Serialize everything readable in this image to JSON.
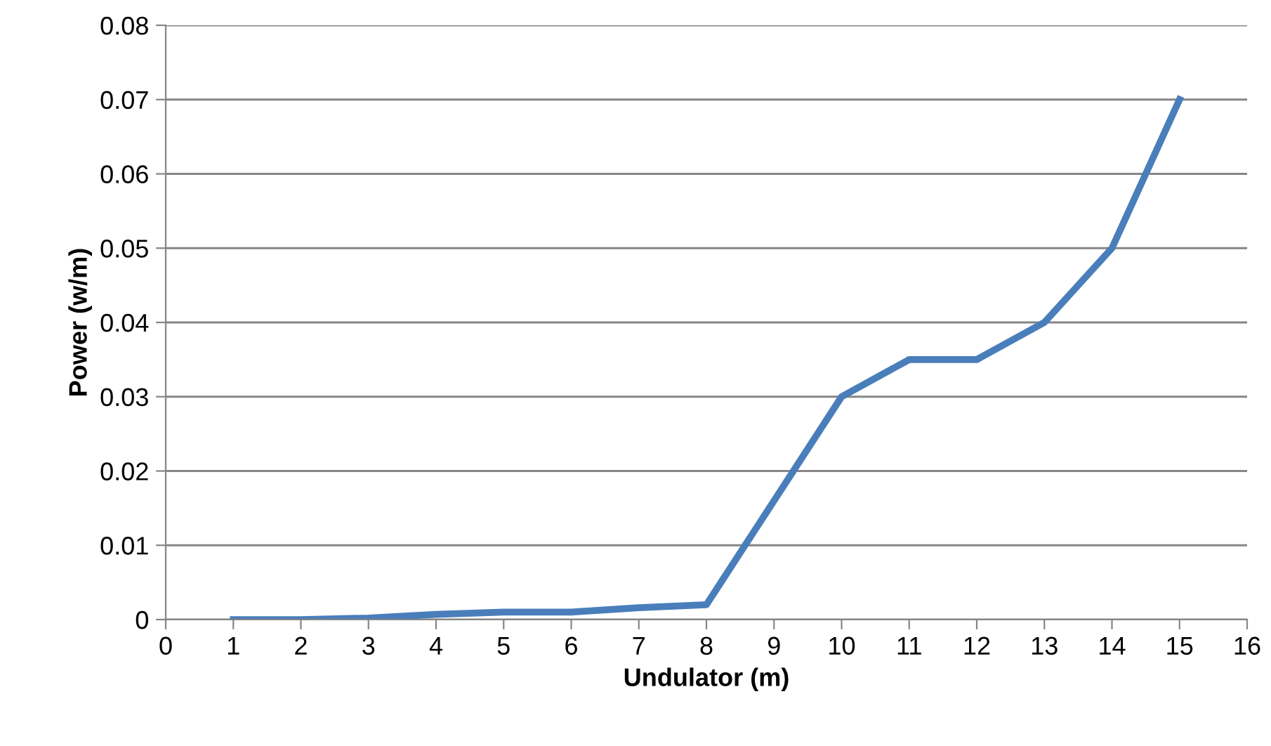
{
  "chart_data": {
    "type": "line",
    "xlabel": "Undulator (m)",
    "ylabel": "Power (w/m)",
    "x": [
      1,
      2,
      3,
      4,
      5,
      6,
      7,
      8,
      9,
      10,
      11,
      12,
      13,
      14,
      15
    ],
    "series": [
      {
        "color": "#4a7ebb",
        "values": [
          0,
          0,
          0.0002,
          0.0007,
          0.001,
          0.001,
          0.0016,
          0.002,
          0.016,
          0.03,
          0.035,
          0.035,
          0.04,
          0.05,
          0.07
        ]
      }
    ],
    "xlim": [
      0,
      16
    ],
    "xticks": [
      0,
      1,
      2,
      3,
      4,
      5,
      6,
      7,
      8,
      9,
      10,
      11,
      12,
      13,
      14,
      15,
      16
    ],
    "ylim": [
      0,
      0.08
    ],
    "yticks": [
      {
        "value": 0,
        "label": "0"
      },
      {
        "value": 0.01,
        "label": "0.01"
      },
      {
        "value": 0.02,
        "label": "0.02"
      },
      {
        "value": 0.03,
        "label": "0.03"
      },
      {
        "value": 0.04,
        "label": "0.04"
      },
      {
        "value": 0.05,
        "label": "0.05"
      },
      {
        "value": 0.06,
        "label": "0.06"
      },
      {
        "value": 0.07,
        "label": "0.07"
      },
      {
        "value": 0.08,
        "label": "0.08"
      }
    ],
    "grid": "y",
    "marker": "none",
    "line_style": "solid",
    "legend": false
  }
}
